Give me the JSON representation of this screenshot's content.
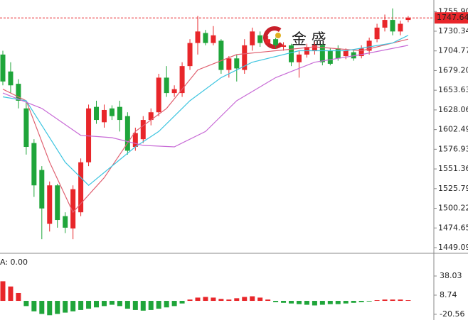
{
  "chart_data": [
    {
      "type": "candlestick",
      "logo": "金 盛",
      "up_color": "#e8262a",
      "down_color": "#1fa53a",
      "ylim": [
        1441.7,
        1770.9
      ],
      "yticks": [
        {
          "value": 1755.9,
          "label": "1755.90"
        },
        1730.34,
        1704.77,
        {
          "value": 1679.2,
          "label": "1679.20"
        },
        1653.63,
        1628.06,
        1602.49,
        1576.93,
        1551.36,
        1525.79,
        {
          "value": 1500.22,
          "label": "1500.22"
        },
        1474.65,
        1449.09
      ],
      "last_price": 1747.64,
      "last_price_color": "#e8262a",
      "open": [
        1700,
        1678,
        1662,
        1630,
        1585,
        1550,
        1480,
        1530,
        1490,
        1474,
        1495,
        1560,
        1632,
        1612,
        1630,
        1632,
        1620,
        1580,
        1590,
        1615,
        1625,
        1670,
        1650,
        1650,
        1685,
        1715,
        1728,
        1715,
        1718,
        1680,
        1695,
        1680,
        1712,
        1725,
        1715,
        1720,
        1710,
        1712,
        1690,
        1700,
        1705,
        1712,
        1705,
        1708,
        1698,
        1703,
        1698,
        1705,
        1720,
        1735,
        1745,
        1730,
        1745
      ],
      "close": [
        1665,
        1660,
        1640,
        1580,
        1530,
        1500,
        1530,
        1485,
        1475,
        1525,
        1560,
        1630,
        1615,
        1628,
        1620,
        1615,
        1575,
        1598,
        1615,
        1625,
        1670,
        1650,
        1655,
        1685,
        1715,
        1730,
        1715,
        1725,
        1680,
        1695,
        1682,
        1712,
        1730,
        1715,
        1720,
        1712,
        1712,
        1690,
        1700,
        1710,
        1712,
        1690,
        1688,
        1695,
        1705,
        1695,
        1708,
        1718,
        1735,
        1745,
        1730,
        1740,
        1748
      ],
      "high": [
        1705,
        1690,
        1668,
        1640,
        1590,
        1555,
        1535,
        1532,
        1495,
        1530,
        1565,
        1635,
        1640,
        1635,
        1634,
        1640,
        1625,
        1605,
        1620,
        1630,
        1675,
        1685,
        1660,
        1690,
        1720,
        1750,
        1732,
        1737,
        1720,
        1698,
        1700,
        1720,
        1735,
        1730,
        1724,
        1722,
        1716,
        1714,
        1705,
        1714,
        1716,
        1714,
        1708,
        1712,
        1708,
        1706,
        1712,
        1722,
        1740,
        1752,
        1760,
        1744,
        1750
      ],
      "low": [
        1660,
        1650,
        1630,
        1570,
        1515,
        1460,
        1470,
        1475,
        1468,
        1460,
        1490,
        1555,
        1610,
        1605,
        1615,
        1600,
        1570,
        1575,
        1585,
        1608,
        1620,
        1645,
        1645,
        1645,
        1680,
        1700,
        1712,
        1712,
        1675,
        1670,
        1665,
        1675,
        1705,
        1710,
        1712,
        1708,
        1705,
        1685,
        1670,
        1696,
        1700,
        1686,
        1686,
        1692,
        1694,
        1692,
        1695,
        1700,
        1716,
        1730,
        1725,
        1725,
        1742
      ],
      "lines": [
        {
          "color": "#e06070",
          "x": [
            0,
            3,
            6,
            9,
            13,
            17,
            21,
            25,
            30,
            35,
            40,
            46,
            52
          ],
          "values": [
            1655,
            1640,
            1560,
            1495,
            1540,
            1600,
            1630,
            1680,
            1700,
            1705,
            1710,
            1705,
            1720
          ]
        },
        {
          "color": "#3ec5e0",
          "x": [
            0,
            3,
            8,
            11,
            14,
            17,
            20,
            24,
            28,
            32,
            38,
            44,
            50,
            52
          ],
          "values": [
            1645,
            1640,
            1560,
            1530,
            1555,
            1580,
            1600,
            1640,
            1670,
            1690,
            1705,
            1705,
            1715,
            1725
          ]
        },
        {
          "color": "#c86bd6",
          "x": [
            0,
            5,
            10,
            14,
            18,
            22,
            26,
            30,
            35,
            40,
            46,
            52
          ],
          "values": [
            1650,
            1630,
            1595,
            1592,
            1582,
            1580,
            1600,
            1640,
            1670,
            1690,
            1700,
            1712
          ]
        }
      ]
    },
    {
      "type": "bar",
      "label": "A: 0.00",
      "label_color": "#f08a00",
      "up_color": "#e8262a",
      "down_color": "#1fa53a",
      "y2lim": [
        -29.3,
        72.8
      ],
      "y2ticks": [
        38.03,
        8.74,
        -20.56
      ],
      "values": [
        30,
        22,
        12,
        -8,
        -16,
        -20,
        -22,
        -20,
        -18,
        -16,
        -14,
        -12,
        -10,
        -8,
        -6,
        -8,
        -12,
        -14,
        -15,
        -14,
        -12,
        -10,
        -8,
        -4,
        2,
        5,
        6,
        5,
        3,
        2,
        4,
        6,
        7,
        5,
        2,
        -2,
        -3,
        -4,
        -5,
        -6,
        -7,
        -6,
        -5,
        -5,
        -4,
        -3,
        -2,
        -1,
        1,
        2,
        2,
        2,
        1
      ]
    }
  ]
}
